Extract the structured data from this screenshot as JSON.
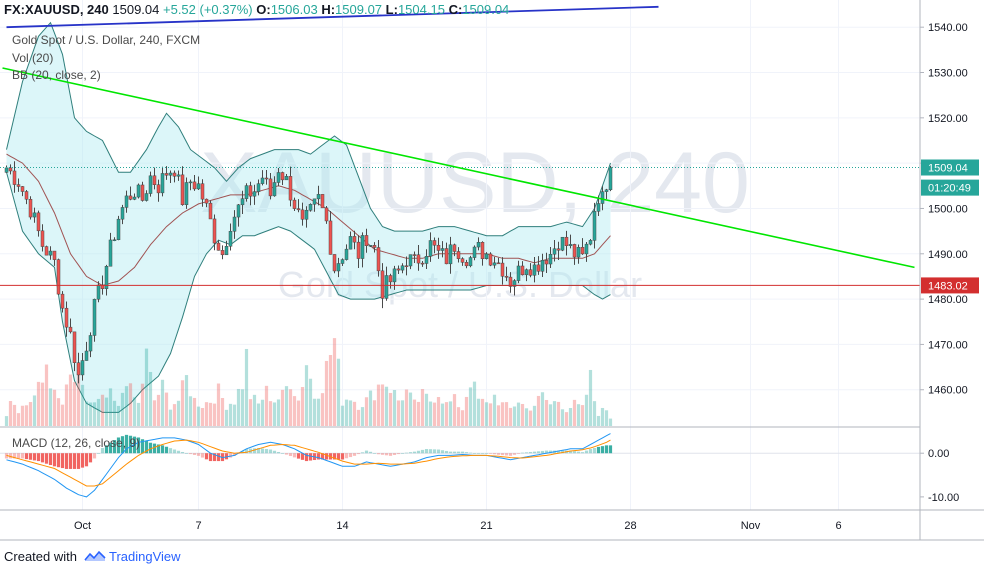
{
  "header": {
    "symbol": "FX:XAUUSD, 240",
    "last": "1509.04",
    "change": "+5.52 (+0.37%)",
    "o_label": "O:",
    "o": "1506.03",
    "h_label": "H:",
    "h": "1509.07",
    "l_label": "L:",
    "l": "1504.15",
    "c_label": "C:",
    "c": "1509.04"
  },
  "legend": {
    "series": "Gold Spot / U.S. Dollar, 240, FXCM",
    "vol": "Vol (20)",
    "bb": "BB (20, close, 2)",
    "macd": "MACD (12, 26, close, 9)"
  },
  "watermark": {
    "symbol": "XAUUSD, 240",
    "name": "Gold Spot / U.S. Dollar"
  },
  "footer": {
    "created": "Created with",
    "brand": "TradingView"
  },
  "colors": {
    "up": "#26a69a",
    "down": "#ef5350",
    "bb_fill": "#b2ebf2",
    "bb_line": "#2f7f7c",
    "bb_basis": "#a05252",
    "trend_green": "#00e600",
    "trend_blue": "#2733c8",
    "hline_red": "#d32f2f",
    "macd_line": "#2196f3",
    "signal_line": "#ff8f00"
  },
  "chart_data": {
    "type": "candlestick",
    "price_axis": {
      "min": 1452,
      "max": 1546,
      "ticks": [
        "1540.00",
        "1530.00",
        "1520.00",
        "1510.00",
        "1500.00",
        "1490.00",
        "1480.00",
        "1470.00",
        "1460.00"
      ],
      "tick_values": [
        1540,
        1530,
        1520,
        1510,
        1500,
        1490,
        1480,
        1470,
        1460
      ]
    },
    "macd_axis": {
      "min": -13,
      "max": 6,
      "ticks": [
        "0.00",
        "-10.00"
      ],
      "tick_values": [
        0,
        -10
      ]
    },
    "time_axis": {
      "labels": [
        "Oct",
        "7",
        "14",
        "21",
        "28",
        "Nov",
        "6"
      ],
      "label_bars": [
        19,
        48,
        84,
        120,
        156,
        186,
        208
      ]
    },
    "price_labels": [
      {
        "text": "1509.04",
        "value": 1509.04,
        "kind": "last"
      },
      {
        "text": "01:20:49",
        "value": 1504.6,
        "kind": "countdown"
      },
      {
        "text": "1483.02",
        "value": 1483.02,
        "kind": "line"
      }
    ],
    "last_price": 1509.04,
    "horizontal_line": 1483.02,
    "trendlines": [
      {
        "name": "green",
        "from": {
          "bar": -1,
          "price": 1531
        },
        "to": {
          "bar": 227,
          "price": 1487
        }
      },
      {
        "name": "blue",
        "from": {
          "bar": 0,
          "price": 1540
        },
        "to": {
          "bar": 163,
          "price": 1544.5
        }
      }
    ],
    "anchors": [
      [
        0,
        1509
      ],
      [
        3,
        1506
      ],
      [
        6,
        1500
      ],
      [
        9,
        1492
      ],
      [
        12,
        1488
      ],
      [
        14,
        1478
      ],
      [
        16,
        1472
      ],
      [
        18,
        1463
      ],
      [
        20,
        1470
      ],
      [
        22,
        1478
      ],
      [
        24,
        1484
      ],
      [
        26,
        1491
      ],
      [
        28,
        1498
      ],
      [
        30,
        1502
      ],
      [
        32,
        1504
      ],
      [
        34,
        1502
      ],
      [
        36,
        1507
      ],
      [
        38,
        1505
      ],
      [
        40,
        1508
      ],
      [
        42,
        1509
      ],
      [
        44,
        1502
      ],
      [
        46,
        1506
      ],
      [
        48,
        1505
      ],
      [
        50,
        1500
      ],
      [
        52,
        1494
      ],
      [
        54,
        1490
      ],
      [
        56,
        1497
      ],
      [
        58,
        1500
      ],
      [
        60,
        1503
      ],
      [
        62,
        1504
      ],
      [
        64,
        1507
      ],
      [
        66,
        1503
      ],
      [
        68,
        1509
      ],
      [
        70,
        1506
      ],
      [
        72,
        1501
      ],
      [
        74,
        1496
      ],
      [
        76,
        1499
      ],
      [
        78,
        1502
      ],
      [
        80,
        1497
      ],
      [
        82,
        1487
      ],
      [
        84,
        1490
      ],
      [
        86,
        1493
      ],
      [
        88,
        1490
      ],
      [
        90,
        1494
      ],
      [
        92,
        1491
      ],
      [
        94,
        1482
      ],
      [
        96,
        1484
      ],
      [
        98,
        1486
      ],
      [
        100,
        1489
      ],
      [
        102,
        1488
      ],
      [
        104,
        1490
      ],
      [
        106,
        1492
      ],
      [
        108,
        1490
      ],
      [
        110,
        1489
      ],
      [
        112,
        1492
      ],
      [
        114,
        1490
      ],
      [
        116,
        1489
      ],
      [
        118,
        1491
      ],
      [
        120,
        1490
      ],
      [
        122,
        1489
      ],
      [
        124,
        1487
      ],
      [
        126,
        1484
      ],
      [
        128,
        1486
      ],
      [
        130,
        1488
      ],
      [
        132,
        1487
      ],
      [
        134,
        1489
      ],
      [
        136,
        1490
      ],
      [
        138,
        1493
      ],
      [
        140,
        1492
      ],
      [
        142,
        1490
      ],
      [
        144,
        1489
      ],
      [
        146,
        1494
      ],
      [
        147,
        1500
      ],
      [
        148,
        1503
      ],
      [
        149,
        1502
      ],
      [
        150,
        1506
      ],
      [
        151,
        1509
      ]
    ],
    "bb_upper_anchors": [
      [
        0,
        1513
      ],
      [
        4,
        1528
      ],
      [
        8,
        1538
      ],
      [
        11,
        1541
      ],
      [
        14,
        1534
      ],
      [
        17,
        1520
      ],
      [
        20,
        1517
      ],
      [
        24,
        1515
      ],
      [
        28,
        1508
      ],
      [
        31,
        1508
      ],
      [
        35,
        1513
      ],
      [
        38,
        1518
      ],
      [
        40,
        1521
      ],
      [
        43,
        1518
      ],
      [
        46,
        1513
      ],
      [
        49,
        1511
      ],
      [
        52,
        1509
      ],
      [
        55,
        1506
      ],
      [
        58,
        1509
      ],
      [
        61,
        1511
      ],
      [
        64,
        1512
      ],
      [
        67,
        1513
      ],
      [
        70,
        1513
      ],
      [
        73,
        1513
      ],
      [
        76,
        1512
      ],
      [
        79,
        1514
      ],
      [
        82,
        1516
      ],
      [
        85,
        1514
      ],
      [
        88,
        1507
      ],
      [
        91,
        1500
      ],
      [
        94,
        1496
      ],
      [
        97,
        1495
      ],
      [
        100,
        1495
      ],
      [
        104,
        1495
      ],
      [
        108,
        1496
      ],
      [
        112,
        1496
      ],
      [
        116,
        1495
      ],
      [
        120,
        1494
      ],
      [
        124,
        1494
      ],
      [
        128,
        1496
      ],
      [
        132,
        1496
      ],
      [
        136,
        1496
      ],
      [
        140,
        1497
      ],
      [
        144,
        1496
      ],
      [
        147,
        1500
      ],
      [
        149,
        1505
      ],
      [
        151,
        1510
      ]
    ],
    "bb_basis_anchors": [
      [
        0,
        1512
      ],
      [
        4,
        1510
      ],
      [
        8,
        1506
      ],
      [
        12,
        1499
      ],
      [
        16,
        1490
      ],
      [
        20,
        1485
      ],
      [
        24,
        1483
      ],
      [
        28,
        1484
      ],
      [
        32,
        1487
      ],
      [
        36,
        1492
      ],
      [
        40,
        1496
      ],
      [
        44,
        1499
      ],
      [
        48,
        1501
      ],
      [
        52,
        1502
      ],
      [
        56,
        1503
      ],
      [
        60,
        1503
      ],
      [
        64,
        1504
      ],
      [
        68,
        1505
      ],
      [
        72,
        1504
      ],
      [
        76,
        1502
      ],
      [
        80,
        1500
      ],
      [
        84,
        1497
      ],
      [
        88,
        1494
      ],
      [
        92,
        1491
      ],
      [
        96,
        1490
      ],
      [
        100,
        1489
      ],
      [
        104,
        1489
      ],
      [
        108,
        1490
      ],
      [
        112,
        1490
      ],
      [
        116,
        1490
      ],
      [
        120,
        1490
      ],
      [
        124,
        1489
      ],
      [
        128,
        1489
      ],
      [
        132,
        1488
      ],
      [
        136,
        1489
      ],
      [
        140,
        1489
      ],
      [
        144,
        1489
      ],
      [
        147,
        1490
      ],
      [
        149,
        1492
      ],
      [
        151,
        1494
      ]
    ],
    "bb_lower_anchors": [
      [
        0,
        1508
      ],
      [
        4,
        1495
      ],
      [
        8,
        1490
      ],
      [
        12,
        1487
      ],
      [
        14,
        1475
      ],
      [
        17,
        1462
      ],
      [
        20,
        1457
      ],
      [
        24,
        1455
      ],
      [
        28,
        1455
      ],
      [
        31,
        1457
      ],
      [
        34,
        1460
      ],
      [
        38,
        1463
      ],
      [
        41,
        1468
      ],
      [
        44,
        1476
      ],
      [
        47,
        1485
      ],
      [
        50,
        1490
      ],
      [
        53,
        1493
      ],
      [
        56,
        1492
      ],
      [
        59,
        1494
      ],
      [
        62,
        1494
      ],
      [
        65,
        1495
      ],
      [
        68,
        1496
      ],
      [
        71,
        1495
      ],
      [
        74,
        1493
      ],
      [
        77,
        1491
      ],
      [
        80,
        1486
      ],
      [
        83,
        1481
      ],
      [
        86,
        1480
      ],
      [
        89,
        1480
      ],
      [
        92,
        1480
      ],
      [
        96,
        1481
      ],
      [
        100,
        1482
      ],
      [
        104,
        1482
      ],
      [
        108,
        1482
      ],
      [
        112,
        1482
      ],
      [
        116,
        1482
      ],
      [
        120,
        1483
      ],
      [
        124,
        1483
      ],
      [
        128,
        1483
      ],
      [
        132,
        1483
      ],
      [
        136,
        1483
      ],
      [
        140,
        1483
      ],
      [
        144,
        1483
      ],
      [
        147,
        1481
      ],
      [
        149,
        1480
      ],
      [
        151,
        1481
      ]
    ],
    "macd_anchors": [
      [
        0,
        -1.5
      ],
      [
        4,
        -2.5
      ],
      [
        8,
        -4
      ],
      [
        12,
        -6
      ],
      [
        15,
        -8
      ],
      [
        18,
        -9.5
      ],
      [
        20,
        -10
      ],
      [
        22,
        -8.5
      ],
      [
        24,
        -6
      ],
      [
        26,
        -3.5
      ],
      [
        28,
        -1
      ],
      [
        30,
        1
      ],
      [
        33,
        2.5
      ],
      [
        36,
        3
      ],
      [
        39,
        3.5
      ],
      [
        42,
        3.5
      ],
      [
        45,
        3
      ],
      [
        48,
        2
      ],
      [
        51,
        0
      ],
      [
        54,
        -1
      ],
      [
        57,
        -0.5
      ],
      [
        60,
        1
      ],
      [
        63,
        2
      ],
      [
        66,
        2.5
      ],
      [
        69,
        2
      ],
      [
        72,
        1
      ],
      [
        75,
        -0.5
      ],
      [
        78,
        -1
      ],
      [
        81,
        -2
      ],
      [
        84,
        -3
      ],
      [
        87,
        -3
      ],
      [
        90,
        -2
      ],
      [
        93,
        -2.5
      ],
      [
        96,
        -3
      ],
      [
        99,
        -2.5
      ],
      [
        102,
        -2
      ],
      [
        105,
        -1
      ],
      [
        108,
        -0.5
      ],
      [
        111,
        -0.5
      ],
      [
        114,
        -0.3
      ],
      [
        117,
        -0.5
      ],
      [
        120,
        -0.5
      ],
      [
        123,
        -1
      ],
      [
        126,
        -1.5
      ],
      [
        129,
        -1
      ],
      [
        132,
        -0.5
      ],
      [
        135,
        0
      ],
      [
        138,
        0.5
      ],
      [
        141,
        1
      ],
      [
        144,
        1
      ],
      [
        146,
        2
      ],
      [
        148,
        3
      ],
      [
        150,
        4
      ],
      [
        151,
        4.5
      ]
    ],
    "signal_anchors": [
      [
        0,
        -0.5
      ],
      [
        4,
        -1.5
      ],
      [
        8,
        -2.5
      ],
      [
        12,
        -3.5
      ],
      [
        15,
        -5
      ],
      [
        18,
        -6.5
      ],
      [
        20,
        -7.5
      ],
      [
        22,
        -7.5
      ],
      [
        24,
        -7
      ],
      [
        26,
        -5.5
      ],
      [
        28,
        -4
      ],
      [
        30,
        -2.5
      ],
      [
        33,
        -0.5
      ],
      [
        36,
        1
      ],
      [
        39,
        2
      ],
      [
        42,
        2.8
      ],
      [
        45,
        3
      ],
      [
        48,
        2.5
      ],
      [
        51,
        1.5
      ],
      [
        54,
        0.5
      ],
      [
        57,
        0
      ],
      [
        60,
        0.2
      ],
      [
        63,
        1
      ],
      [
        66,
        1.8
      ],
      [
        69,
        2
      ],
      [
        72,
        1.8
      ],
      [
        75,
        1
      ],
      [
        78,
        0.2
      ],
      [
        81,
        -0.8
      ],
      [
        84,
        -1.8
      ],
      [
        87,
        -2.5
      ],
      [
        90,
        -2.5
      ],
      [
        93,
        -2.3
      ],
      [
        96,
        -2.5
      ],
      [
        99,
        -2.5
      ],
      [
        102,
        -2.3
      ],
      [
        105,
        -1.8
      ],
      [
        108,
        -1.2
      ],
      [
        111,
        -0.8
      ],
      [
        114,
        -0.6
      ],
      [
        117,
        -0.5
      ],
      [
        120,
        -0.5
      ],
      [
        123,
        -0.7
      ],
      [
        126,
        -1
      ],
      [
        129,
        -1.1
      ],
      [
        132,
        -0.8
      ],
      [
        135,
        -0.5
      ],
      [
        138,
        0
      ],
      [
        141,
        0.5
      ],
      [
        144,
        0.8
      ],
      [
        146,
        1.2
      ],
      [
        148,
        1.8
      ],
      [
        150,
        2.5
      ],
      [
        151,
        3
      ]
    ],
    "volume_anchors": [
      [
        0,
        0.15
      ],
      [
        1,
        0.35
      ],
      [
        3,
        0.2
      ],
      [
        5,
        0.25
      ],
      [
        7,
        0.35
      ],
      [
        9,
        0.5
      ],
      [
        10,
        0.75
      ],
      [
        12,
        0.35
      ],
      [
        14,
        0.25
      ],
      [
        16,
        0.55
      ],
      [
        18,
        0.5
      ],
      [
        20,
        0.3
      ],
      [
        22,
        0.25
      ],
      [
        24,
        0.3
      ],
      [
        26,
        0.35
      ],
      [
        28,
        0.2
      ],
      [
        30,
        0.6
      ],
      [
        31,
        0.4
      ],
      [
        33,
        0.25
      ],
      [
        35,
        0.8
      ],
      [
        37,
        0.3
      ],
      [
        39,
        0.45
      ],
      [
        41,
        0.25
      ],
      [
        43,
        0.3
      ],
      [
        45,
        0.55
      ],
      [
        47,
        0.3
      ],
      [
        49,
        0.25
      ],
      [
        51,
        0.3
      ],
      [
        53,
        0.4
      ],
      [
        55,
        0.25
      ],
      [
        57,
        0.3
      ],
      [
        59,
        0.5
      ],
      [
        60,
        0.8
      ],
      [
        61,
        0.35
      ],
      [
        63,
        0.25
      ],
      [
        65,
        0.4
      ],
      [
        67,
        0.3
      ],
      [
        69,
        0.35
      ],
      [
        71,
        0.55
      ],
      [
        73,
        0.3
      ],
      [
        75,
        0.75
      ],
      [
        77,
        0.35
      ],
      [
        79,
        0.5
      ],
      [
        81,
        0.85
      ],
      [
        82,
        1
      ],
      [
        84,
        0.3
      ],
      [
        86,
        0.35
      ],
      [
        88,
        0.25
      ],
      [
        90,
        0.3
      ],
      [
        92,
        0.4
      ],
      [
        94,
        0.55
      ],
      [
        96,
        0.45
      ],
      [
        98,
        0.3
      ],
      [
        100,
        0.4
      ],
      [
        102,
        0.25
      ],
      [
        104,
        0.35
      ],
      [
        106,
        0.3
      ],
      [
        108,
        0.4
      ],
      [
        110,
        0.25
      ],
      [
        112,
        0.3
      ],
      [
        114,
        0.2
      ],
      [
        116,
        0.55
      ],
      [
        118,
        0.3
      ],
      [
        120,
        0.25
      ],
      [
        122,
        0.35
      ],
      [
        124,
        0.25
      ],
      [
        126,
        0.2
      ],
      [
        128,
        0.3
      ],
      [
        130,
        0.2
      ],
      [
        132,
        0.25
      ],
      [
        134,
        0.35
      ],
      [
        136,
        0.25
      ],
      [
        138,
        0.3
      ],
      [
        140,
        0.2
      ],
      [
        142,
        0.25
      ],
      [
        144,
        0.2
      ],
      [
        146,
        0.55
      ],
      [
        147,
        0.3
      ],
      [
        148,
        0.15
      ],
      [
        150,
        0.2
      ],
      [
        151,
        0.1
      ]
    ]
  }
}
